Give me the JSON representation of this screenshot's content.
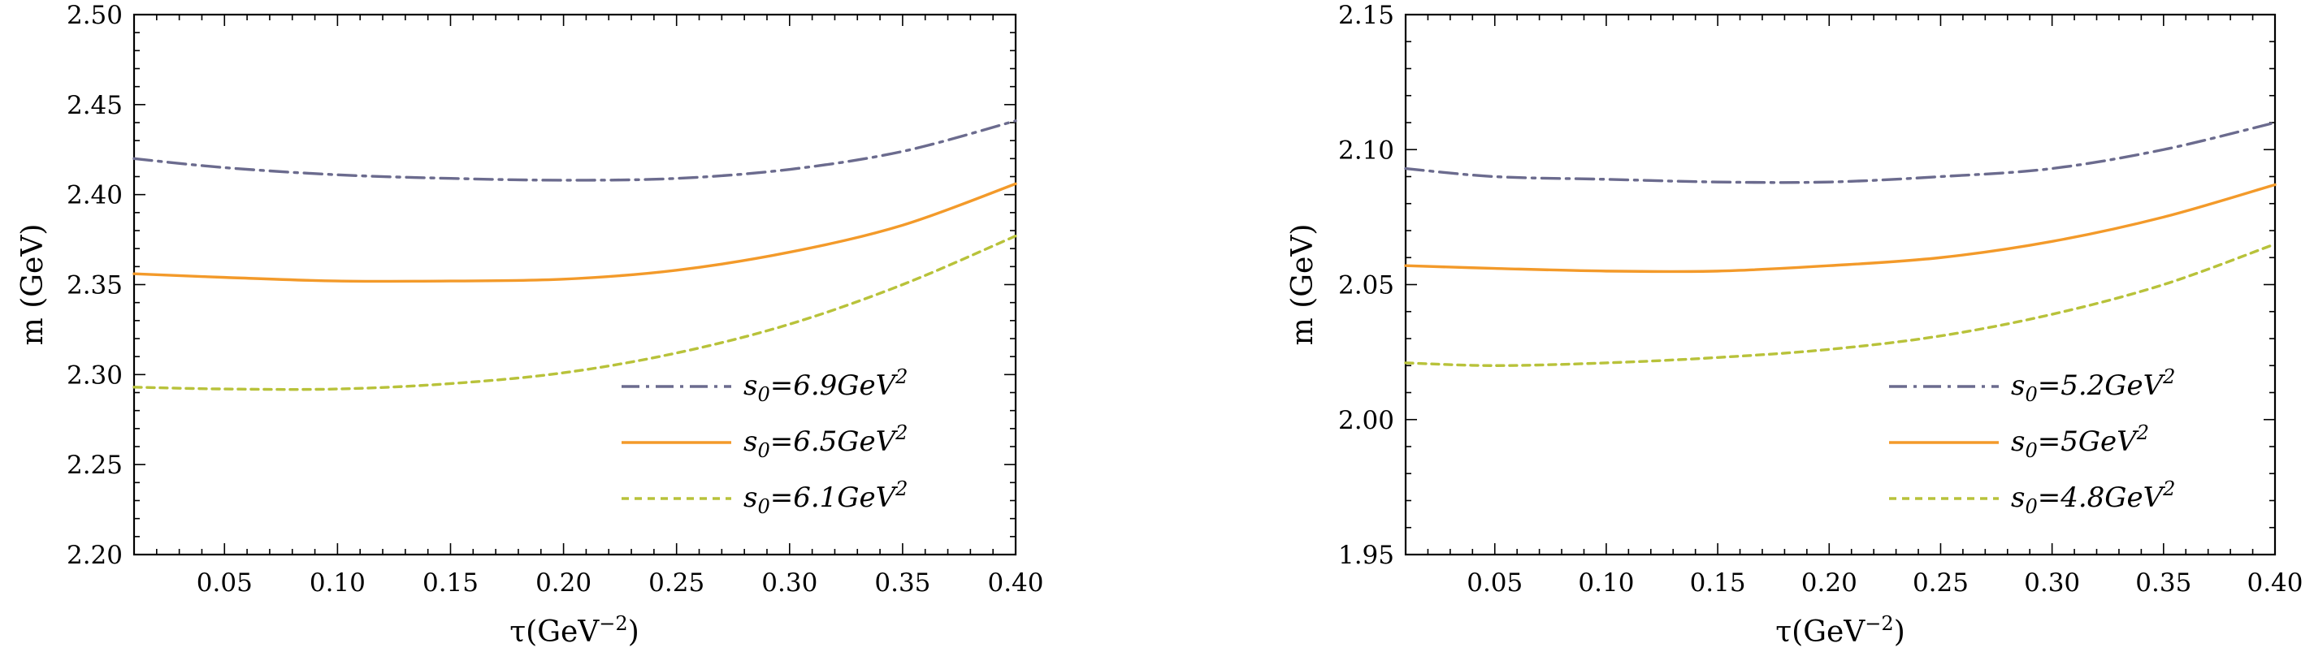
{
  "chart_data": [
    {
      "type": "line",
      "xlabel_base": "τ(GeV",
      "xlabel_exp": "−2",
      "xlabel_close": ")",
      "ylabel": "m (GeV)",
      "xlim": [
        0.01,
        0.4
      ],
      "ylim": [
        2.2,
        2.5
      ],
      "x_ticks": [
        0.05,
        0.1,
        0.15,
        0.2,
        0.25,
        0.3,
        0.35,
        0.4
      ],
      "x_tick_labels": [
        "0.05",
        "0.10",
        "0.15",
        "0.20",
        "0.25",
        "0.30",
        "0.35",
        "0.40"
      ],
      "y_ticks": [
        2.2,
        2.25,
        2.3,
        2.35,
        2.4,
        2.45,
        2.5
      ],
      "y_tick_labels": [
        "2.20",
        "2.25",
        "2.30",
        "2.35",
        "2.40",
        "2.45",
        "2.50"
      ],
      "legend_position": "bottom-right",
      "series": [
        {
          "name": "s0=6.9GeV2",
          "label_s": "s",
          "label_sub": "0",
          "label_mid": "=6.9GeV",
          "label_sup": "2",
          "color": "#6b6b8e",
          "dash": "22,8,4,8",
          "x": [
            0.01,
            0.05,
            0.1,
            0.15,
            0.2,
            0.25,
            0.3,
            0.35,
            0.4
          ],
          "y": [
            2.42,
            2.415,
            2.411,
            2.409,
            2.408,
            2.409,
            2.414,
            2.424,
            2.441
          ]
        },
        {
          "name": "s0=6.5GeV2",
          "label_s": "s",
          "label_sub": "0",
          "label_mid": "=6.5GeV",
          "label_sup": "2",
          "color": "#f39a2a",
          "dash": "",
          "x": [
            0.01,
            0.05,
            0.1,
            0.15,
            0.2,
            0.25,
            0.3,
            0.35,
            0.4
          ],
          "y": [
            2.356,
            2.354,
            2.352,
            2.352,
            2.353,
            2.358,
            2.368,
            2.383,
            2.406
          ]
        },
        {
          "name": "s0=6.1GeV2",
          "label_s": "s",
          "label_sub": "0",
          "label_mid": "=6.1GeV",
          "label_sup": "2",
          "color": "#b8c23a",
          "dash": "9,7",
          "x": [
            0.01,
            0.05,
            0.1,
            0.15,
            0.2,
            0.25,
            0.3,
            0.35,
            0.4
          ],
          "y": [
            2.293,
            2.292,
            2.292,
            2.295,
            2.301,
            2.312,
            2.328,
            2.35,
            2.377
          ]
        }
      ]
    },
    {
      "type": "line",
      "xlabel_base": "τ(GeV",
      "xlabel_exp": "−2",
      "xlabel_close": ")",
      "ylabel": "m (GeV)",
      "xlim": [
        0.01,
        0.4
      ],
      "ylim": [
        1.95,
        2.15
      ],
      "x_ticks": [
        0.05,
        0.1,
        0.15,
        0.2,
        0.25,
        0.3,
        0.35,
        0.4
      ],
      "x_tick_labels": [
        "0.05",
        "0.10",
        "0.15",
        "0.20",
        "0.25",
        "0.30",
        "0.35",
        "0.40"
      ],
      "y_ticks": [
        1.95,
        2.0,
        2.05,
        2.1,
        2.15
      ],
      "y_tick_labels": [
        "1.95",
        "2.00",
        "2.05",
        "2.10",
        "2.15"
      ],
      "legend_position": "bottom-right",
      "series": [
        {
          "name": "s0=5.2GeV2",
          "label_s": "s",
          "label_sub": "0",
          "label_mid": "=5.2GeV",
          "label_sup": "2",
          "color": "#6b6b8e",
          "dash": "22,8,4,8",
          "x": [
            0.01,
            0.05,
            0.1,
            0.15,
            0.2,
            0.25,
            0.3,
            0.35,
            0.4
          ],
          "y": [
            2.093,
            2.09,
            2.089,
            2.088,
            2.088,
            2.09,
            2.093,
            2.1,
            2.11
          ]
        },
        {
          "name": "s0=5GeV2",
          "label_s": "s",
          "label_sub": "0",
          "label_mid": "=5GeV",
          "label_sup": "2",
          "color": "#f39a2a",
          "dash": "",
          "x": [
            0.01,
            0.05,
            0.1,
            0.15,
            0.2,
            0.25,
            0.3,
            0.35,
            0.4
          ],
          "y": [
            2.057,
            2.056,
            2.055,
            2.055,
            2.057,
            2.06,
            2.066,
            2.075,
            2.087
          ]
        },
        {
          "name": "s0=4.8GeV2",
          "label_s": "s",
          "label_sub": "0",
          "label_mid": "=4.8GeV",
          "label_sup": "2",
          "color": "#b8c23a",
          "dash": "9,7",
          "x": [
            0.01,
            0.05,
            0.1,
            0.15,
            0.2,
            0.25,
            0.3,
            0.35,
            0.4
          ],
          "y": [
            2.021,
            2.02,
            2.021,
            2.023,
            2.026,
            2.031,
            2.039,
            2.05,
            2.065
          ]
        }
      ]
    }
  ]
}
